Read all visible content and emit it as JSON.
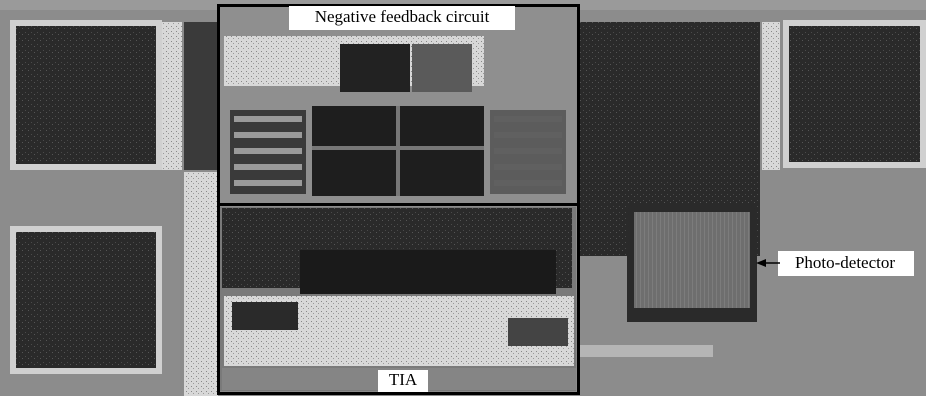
{
  "labels": {
    "feedback_circuit": "Negative feedback circuit",
    "tia": "TIA",
    "photo_detector": "Photo-detector"
  }
}
